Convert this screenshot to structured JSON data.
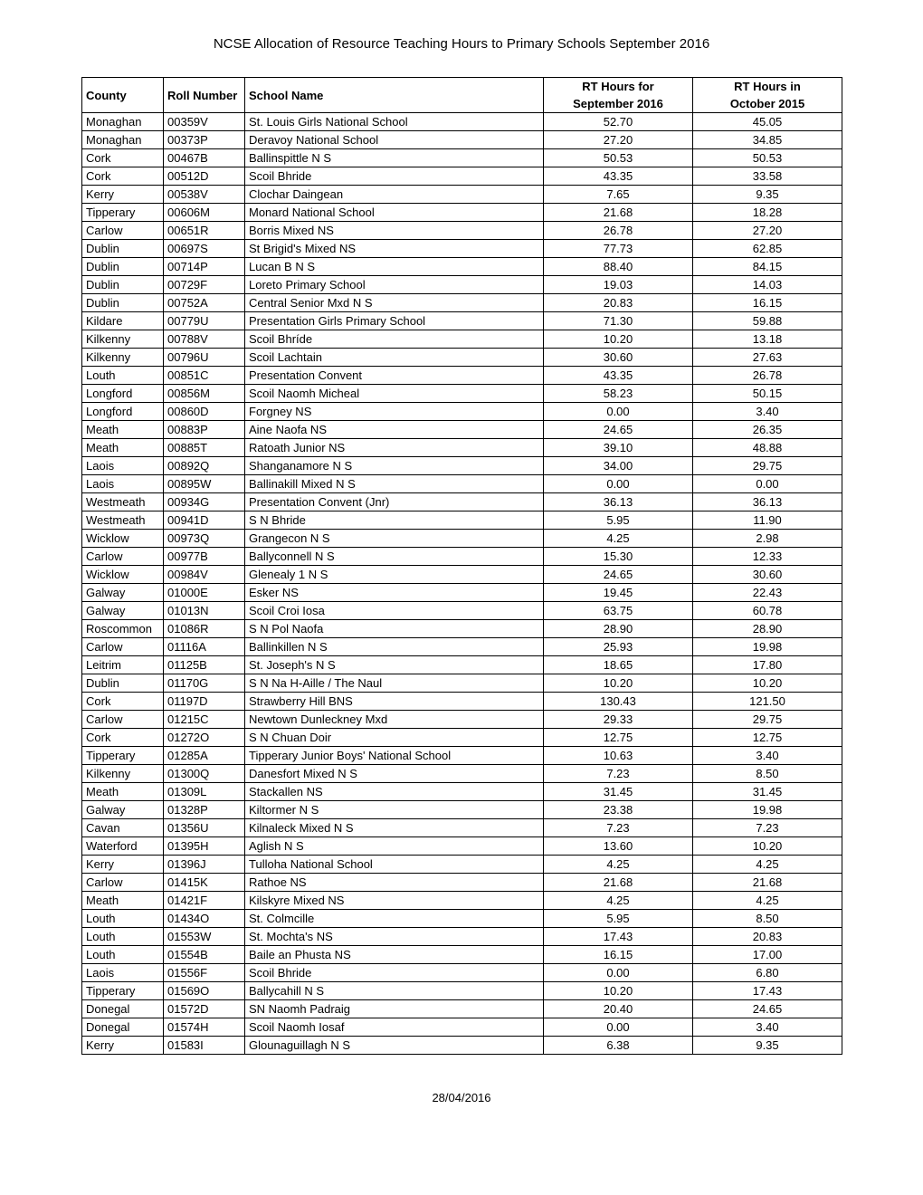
{
  "title": "NCSE Allocation of Resource Teaching Hours to Primary Schools September 2016",
  "footer_date": "28/04/2016",
  "columns": {
    "county": "County",
    "roll": "Roll Number",
    "school": "School Name",
    "sep_line1": "RT Hours for",
    "sep_line2": "September 2016",
    "oct_line1": "RT Hours in",
    "oct_line2": "October 2015"
  },
  "rows": [
    {
      "county": "Monaghan",
      "roll": "00359V",
      "school": "St. Louis Girls National School",
      "sep": "52.70",
      "oct": "45.05"
    },
    {
      "county": "Monaghan",
      "roll": "00373P",
      "school": "Deravoy National School",
      "sep": "27.20",
      "oct": "34.85"
    },
    {
      "county": "Cork",
      "roll": "00467B",
      "school": "Ballinspittle N S",
      "sep": "50.53",
      "oct": "50.53"
    },
    {
      "county": "Cork",
      "roll": "00512D",
      "school": "Scoil Bhride",
      "sep": "43.35",
      "oct": "33.58"
    },
    {
      "county": "Kerry",
      "roll": "00538V",
      "school": "Clochar Daingean",
      "sep": "7.65",
      "oct": "9.35"
    },
    {
      "county": "Tipperary",
      "roll": "00606M",
      "school": "Monard National School",
      "sep": "21.68",
      "oct": "18.28"
    },
    {
      "county": "Carlow",
      "roll": "00651R",
      "school": "Borris Mixed NS",
      "sep": "26.78",
      "oct": "27.20"
    },
    {
      "county": "Dublin",
      "roll": "00697S",
      "school": "St Brigid's Mixed NS",
      "sep": "77.73",
      "oct": "62.85"
    },
    {
      "county": "Dublin",
      "roll": "00714P",
      "school": "Lucan B N S",
      "sep": "88.40",
      "oct": "84.15"
    },
    {
      "county": "Dublin",
      "roll": "00729F",
      "school": "Loreto Primary School",
      "sep": "19.03",
      "oct": "14.03"
    },
    {
      "county": "Dublin",
      "roll": "00752A",
      "school": "Central Senior Mxd N S",
      "sep": "20.83",
      "oct": "16.15"
    },
    {
      "county": "Kildare",
      "roll": "00779U",
      "school": "Presentation Girls Primary School",
      "sep": "71.30",
      "oct": "59.88"
    },
    {
      "county": "Kilkenny",
      "roll": "00788V",
      "school": "Scoil Bhríde",
      "sep": "10.20",
      "oct": "13.18"
    },
    {
      "county": "Kilkenny",
      "roll": "00796U",
      "school": "Scoil Lachtain",
      "sep": "30.60",
      "oct": "27.63"
    },
    {
      "county": "Louth",
      "roll": "00851C",
      "school": "Presentation Convent",
      "sep": "43.35",
      "oct": "26.78"
    },
    {
      "county": "Longford",
      "roll": "00856M",
      "school": "Scoil Naomh Micheal",
      "sep": "58.23",
      "oct": "50.15"
    },
    {
      "county": "Longford",
      "roll": "00860D",
      "school": "Forgney NS",
      "sep": "0.00",
      "oct": "3.40"
    },
    {
      "county": "Meath",
      "roll": "00883P",
      "school": "Aine Naofa NS",
      "sep": "24.65",
      "oct": "26.35"
    },
    {
      "county": "Meath",
      "roll": "00885T",
      "school": "Ratoath Junior NS",
      "sep": "39.10",
      "oct": "48.88"
    },
    {
      "county": "Laois",
      "roll": "00892Q",
      "school": "Shanganamore N S",
      "sep": "34.00",
      "oct": "29.75"
    },
    {
      "county": "Laois",
      "roll": "00895W",
      "school": "Ballinakill Mixed N S",
      "sep": "0.00",
      "oct": "0.00"
    },
    {
      "county": "Westmeath",
      "roll": "00934G",
      "school": "Presentation Convent (Jnr)",
      "sep": "36.13",
      "oct": "36.13"
    },
    {
      "county": "Westmeath",
      "roll": "00941D",
      "school": "S N Bhride",
      "sep": "5.95",
      "oct": "11.90"
    },
    {
      "county": "Wicklow",
      "roll": "00973Q",
      "school": "Grangecon N S",
      "sep": "4.25",
      "oct": "2.98"
    },
    {
      "county": "Carlow",
      "roll": "00977B",
      "school": "Ballyconnell N S",
      "sep": "15.30",
      "oct": "12.33"
    },
    {
      "county": "Wicklow",
      "roll": "00984V",
      "school": "Glenealy 1 N S",
      "sep": "24.65",
      "oct": "30.60"
    },
    {
      "county": "Galway",
      "roll": "01000E",
      "school": "Esker NS",
      "sep": "19.45",
      "oct": "22.43"
    },
    {
      "county": "Galway",
      "roll": "01013N",
      "school": "Scoil Croi Iosa",
      "sep": "63.75",
      "oct": "60.78"
    },
    {
      "county": "Roscommon",
      "roll": "01086R",
      "school": "S N Pol Naofa",
      "sep": "28.90",
      "oct": "28.90"
    },
    {
      "county": "Carlow",
      "roll": "01116A",
      "school": "Ballinkillen N S",
      "sep": "25.93",
      "oct": "19.98"
    },
    {
      "county": "Leitrim",
      "roll": "01125B",
      "school": "St. Joseph's N S",
      "sep": "18.65",
      "oct": "17.80"
    },
    {
      "county": "Dublin",
      "roll": "01170G",
      "school": "S N Na H-Aille / The Naul",
      "sep": "10.20",
      "oct": "10.20"
    },
    {
      "county": "Cork",
      "roll": "01197D",
      "school": "Strawberry Hill BNS",
      "sep": "130.43",
      "oct": "121.50"
    },
    {
      "county": "Carlow",
      "roll": "01215C",
      "school": "Newtown Dunleckney Mxd",
      "sep": "29.33",
      "oct": "29.75"
    },
    {
      "county": "Cork",
      "roll": "01272O",
      "school": "S N Chuan Doir",
      "sep": "12.75",
      "oct": "12.75"
    },
    {
      "county": "Tipperary",
      "roll": "01285A",
      "school": "Tipperary Junior Boys' National School",
      "sep": "10.63",
      "oct": "3.40"
    },
    {
      "county": "Kilkenny",
      "roll": "01300Q",
      "school": "Danesfort Mixed N S",
      "sep": "7.23",
      "oct": "8.50"
    },
    {
      "county": "Meath",
      "roll": "01309L",
      "school": "Stackallen NS",
      "sep": "31.45",
      "oct": "31.45"
    },
    {
      "county": "Galway",
      "roll": "01328P",
      "school": "Kiltormer N S",
      "sep": "23.38",
      "oct": "19.98"
    },
    {
      "county": "Cavan",
      "roll": "01356U",
      "school": "Kilnaleck Mixed N S",
      "sep": "7.23",
      "oct": "7.23"
    },
    {
      "county": "Waterford",
      "roll": "01395H",
      "school": "Aglish N S",
      "sep": "13.60",
      "oct": "10.20"
    },
    {
      "county": "Kerry",
      "roll": "01396J",
      "school": "Tulloha National School",
      "sep": "4.25",
      "oct": "4.25"
    },
    {
      "county": "Carlow",
      "roll": "01415K",
      "school": "Rathoe NS",
      "sep": "21.68",
      "oct": "21.68"
    },
    {
      "county": "Meath",
      "roll": "01421F",
      "school": "Kilskyre Mixed NS",
      "sep": "4.25",
      "oct": "4.25"
    },
    {
      "county": "Louth",
      "roll": "01434O",
      "school": "St. Colmcille",
      "sep": "5.95",
      "oct": "8.50"
    },
    {
      "county": "Louth",
      "roll": "01553W",
      "school": "St. Mochta's NS",
      "sep": "17.43",
      "oct": "20.83"
    },
    {
      "county": "Louth",
      "roll": "01554B",
      "school": "Baile an Phusta NS",
      "sep": "16.15",
      "oct": "17.00"
    },
    {
      "county": "Laois",
      "roll": "01556F",
      "school": "Scoil Bhride",
      "sep": "0.00",
      "oct": "6.80"
    },
    {
      "county": "Tipperary",
      "roll": "01569O",
      "school": "Ballycahill N S",
      "sep": "10.20",
      "oct": "17.43"
    },
    {
      "county": "Donegal",
      "roll": "01572D",
      "school": "SN Naomh Padraig",
      "sep": "20.40",
      "oct": "24.65"
    },
    {
      "county": "Donegal",
      "roll": "01574H",
      "school": "Scoil Naomh Iosaf",
      "sep": "0.00",
      "oct": "3.40"
    },
    {
      "county": "Kerry",
      "roll": "01583I",
      "school": "Glounaguillagh N S",
      "sep": "6.38",
      "oct": "9.35"
    }
  ]
}
